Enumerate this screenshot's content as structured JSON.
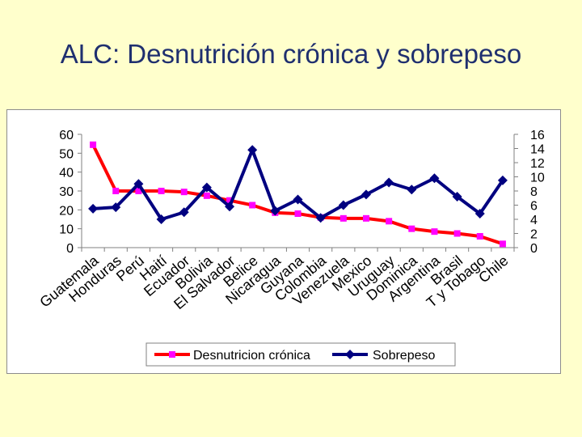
{
  "slide": {
    "title": "ALC: Desnutrición crónica y sobrepeso"
  },
  "chart_data": {
    "type": "line",
    "title": "",
    "categories": [
      "Guatemala",
      "Honduras",
      "Perú",
      "Haití",
      "Ecuador",
      "Bolivia",
      "El Salvador",
      "Belice",
      "Nicaragua",
      "Guyana",
      "Colombia",
      "Venezuela",
      "Mexico",
      "Uruguay",
      "Dominica",
      "Argentina",
      "Brasil",
      "T y Tobago",
      "Chile"
    ],
    "series": [
      {
        "name": "Desnutricion crónica",
        "axis": "left",
        "color": "#FF0000",
        "marker_color": "#FF00FF",
        "marker": "square",
        "values": [
          54.5,
          30,
          30,
          30,
          29.5,
          27.5,
          25,
          22.5,
          18.5,
          18,
          16,
          15.5,
          15.5,
          14,
          10,
          8.5,
          7.5,
          6,
          2
        ]
      },
      {
        "name": "Sobrepeso",
        "axis": "right",
        "color": "#000080",
        "marker": "diamond",
        "values": [
          5.5,
          5.7,
          9,
          4,
          5,
          8.5,
          5.8,
          13.8,
          5.2,
          6.8,
          4.2,
          6,
          7.5,
          9.2,
          8.2,
          9.8,
          7.2,
          4.8,
          9.5
        ]
      }
    ],
    "y_left": {
      "min": 0,
      "max": 60,
      "ticks": [
        "0",
        "10",
        "20",
        "30",
        "40",
        "50",
        "60"
      ]
    },
    "y_right": {
      "min": 0,
      "max": 16,
      "ticks": [
        "0",
        "2",
        "4",
        "6",
        "8",
        "10",
        "12",
        "14",
        "16"
      ]
    },
    "grid": false,
    "legend_position": "bottom"
  }
}
